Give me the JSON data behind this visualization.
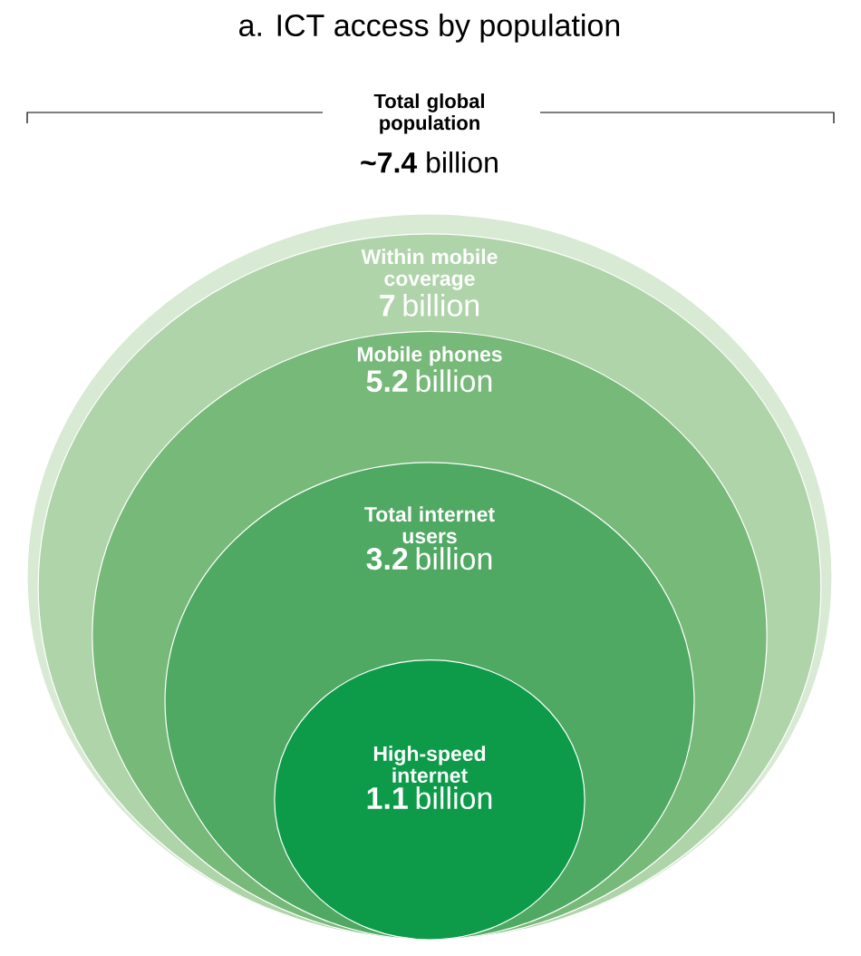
{
  "chart_data": {
    "type": "other",
    "title": "a. ICT access by population",
    "categories": [
      "Total global population",
      "Within mobile coverage",
      "Mobile phones",
      "Total internet users",
      "High-speed internet"
    ],
    "values": [
      7.4,
      7,
      5.2,
      3.2,
      1.1
    ],
    "value_labels": [
      "**~7.4** billion",
      "**7** billion",
      "**5.2** billion",
      "**3.2** billion",
      "**1.1** billion"
    ],
    "colors": [
      "#d8e9d4",
      "#afd4a9",
      "#76b979",
      "#4fa963",
      "#0d9b4a"
    ]
  }
}
